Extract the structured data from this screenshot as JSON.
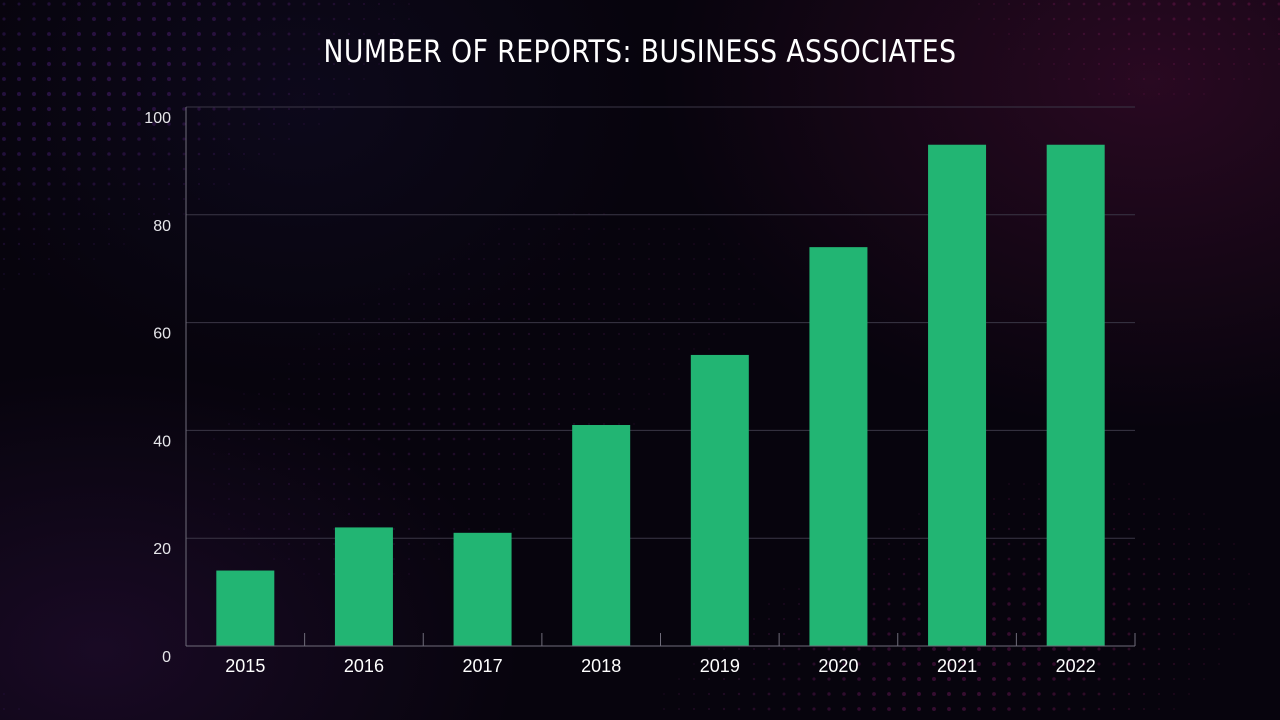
{
  "chart_data": {
    "type": "bar",
    "title": "NUMBER OF REPORTS: BUSINESS ASSOCIATES",
    "xlabel": "",
    "ylabel": "",
    "categories": [
      "2015",
      "2016",
      "2017",
      "2018",
      "2019",
      "2020",
      "2021",
      "2022"
    ],
    "values": [
      14,
      22,
      21,
      41,
      54,
      74,
      93,
      93
    ],
    "ylim": [
      0,
      100
    ],
    "yticks": [
      0,
      20,
      40,
      60,
      80,
      100
    ],
    "grid": true,
    "legend": "none",
    "colors": {
      "bar": "#22b573",
      "grid": "#3a3646",
      "axis": "#6f6c7a"
    }
  }
}
